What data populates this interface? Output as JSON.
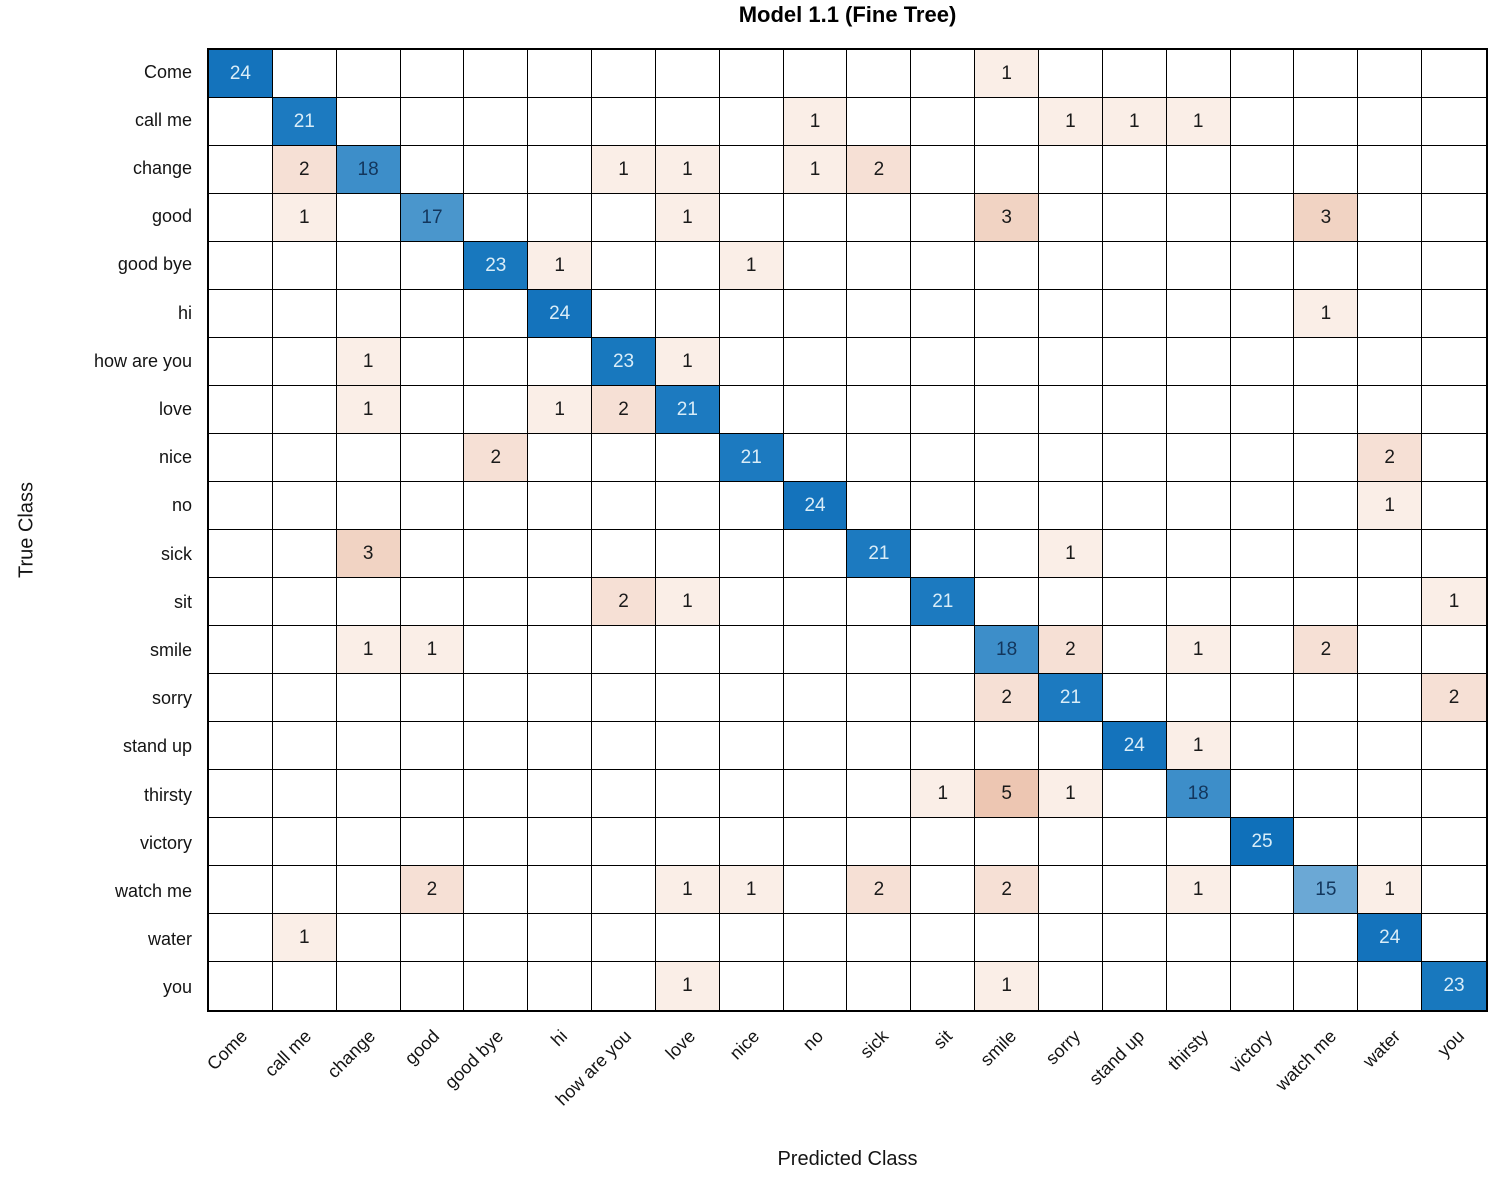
{
  "title": "Model 1.1 (Fine Tree)",
  "chart_data": {
    "type": "heatmap",
    "subtype": "confusion-matrix",
    "title": "Model 1.1 (Fine Tree)",
    "xlabel": "Predicted Class",
    "ylabel": "True Class",
    "classes": [
      "Come",
      "call me",
      "change",
      "good",
      "good bye",
      "hi",
      "how are you",
      "love",
      "nice",
      "no",
      "sick",
      "sit",
      "smile",
      "sorry",
      "stand up",
      "thirsty",
      "victory",
      "watch me",
      "water",
      "you"
    ],
    "matrix": [
      [
        24,
        0,
        0,
        0,
        0,
        0,
        0,
        0,
        0,
        0,
        0,
        0,
        1,
        0,
        0,
        0,
        0,
        0,
        0,
        0
      ],
      [
        0,
        21,
        0,
        0,
        0,
        0,
        0,
        0,
        0,
        1,
        0,
        0,
        0,
        1,
        1,
        1,
        0,
        0,
        0,
        0
      ],
      [
        0,
        2,
        18,
        0,
        0,
        0,
        1,
        1,
        0,
        1,
        2,
        0,
        0,
        0,
        0,
        0,
        0,
        0,
        0,
        0
      ],
      [
        0,
        1,
        0,
        17,
        0,
        0,
        0,
        1,
        0,
        0,
        0,
        0,
        3,
        0,
        0,
        0,
        0,
        3,
        0,
        0
      ],
      [
        0,
        0,
        0,
        0,
        23,
        1,
        0,
        0,
        1,
        0,
        0,
        0,
        0,
        0,
        0,
        0,
        0,
        0,
        0,
        0
      ],
      [
        0,
        0,
        0,
        0,
        0,
        24,
        0,
        0,
        0,
        0,
        0,
        0,
        0,
        0,
        0,
        0,
        0,
        1,
        0,
        0
      ],
      [
        0,
        0,
        1,
        0,
        0,
        0,
        23,
        1,
        0,
        0,
        0,
        0,
        0,
        0,
        0,
        0,
        0,
        0,
        0,
        0
      ],
      [
        0,
        0,
        1,
        0,
        0,
        1,
        2,
        21,
        0,
        0,
        0,
        0,
        0,
        0,
        0,
        0,
        0,
        0,
        0,
        0
      ],
      [
        0,
        0,
        0,
        0,
        2,
        0,
        0,
        0,
        21,
        0,
        0,
        0,
        0,
        0,
        0,
        0,
        0,
        0,
        2,
        0
      ],
      [
        0,
        0,
        0,
        0,
        0,
        0,
        0,
        0,
        0,
        24,
        0,
        0,
        0,
        0,
        0,
        0,
        0,
        0,
        1,
        0
      ],
      [
        0,
        0,
        3,
        0,
        0,
        0,
        0,
        0,
        0,
        0,
        21,
        0,
        0,
        1,
        0,
        0,
        0,
        0,
        0,
        0
      ],
      [
        0,
        0,
        0,
        0,
        0,
        0,
        2,
        1,
        0,
        0,
        0,
        21,
        0,
        0,
        0,
        0,
        0,
        0,
        0,
        1
      ],
      [
        0,
        0,
        1,
        1,
        0,
        0,
        0,
        0,
        0,
        0,
        0,
        0,
        18,
        2,
        0,
        1,
        0,
        2,
        0,
        0
      ],
      [
        0,
        0,
        0,
        0,
        0,
        0,
        0,
        0,
        0,
        0,
        0,
        0,
        2,
        21,
        0,
        0,
        0,
        0,
        0,
        2
      ],
      [
        0,
        0,
        0,
        0,
        0,
        0,
        0,
        0,
        0,
        0,
        0,
        0,
        0,
        0,
        24,
        1,
        0,
        0,
        0,
        0
      ],
      [
        0,
        0,
        0,
        0,
        0,
        0,
        0,
        0,
        0,
        0,
        0,
        1,
        5,
        1,
        0,
        18,
        0,
        0,
        0,
        0
      ],
      [
        0,
        0,
        0,
        0,
        0,
        0,
        0,
        0,
        0,
        0,
        0,
        0,
        0,
        0,
        0,
        0,
        25,
        0,
        0,
        0
      ],
      [
        0,
        0,
        0,
        2,
        0,
        0,
        0,
        1,
        1,
        0,
        2,
        0,
        2,
        0,
        0,
        1,
        0,
        15,
        1,
        0
      ],
      [
        0,
        1,
        0,
        0,
        0,
        0,
        0,
        0,
        0,
        0,
        0,
        0,
        0,
        0,
        0,
        0,
        0,
        0,
        24,
        0
      ],
      [
        0,
        0,
        0,
        0,
        0,
        0,
        0,
        1,
        0,
        0,
        0,
        0,
        1,
        0,
        0,
        0,
        0,
        0,
        0,
        23
      ]
    ]
  },
  "colors": {
    "background": "#FFFFFF",
    "grid_line": "#000000",
    "diagonal_fill": {
      "15": "#6BA8D5",
      "17": "#4A96CC",
      "18": "#3D8EC9",
      "21": "#1C7AC0",
      "23": "#1878BE",
      "24": "#1473BC",
      "25": "#0F70BA"
    },
    "diagonal_text_high": "#D9EDF8",
    "diagonal_text_low": "#13365C",
    "offdiag_fill": {
      "1": "#FAEEE7",
      "2": "#F6E0D5",
      "3": "#F1D3C3",
      "5": "#EDC6B2"
    },
    "offdiag_text": "#1A1A1A"
  }
}
